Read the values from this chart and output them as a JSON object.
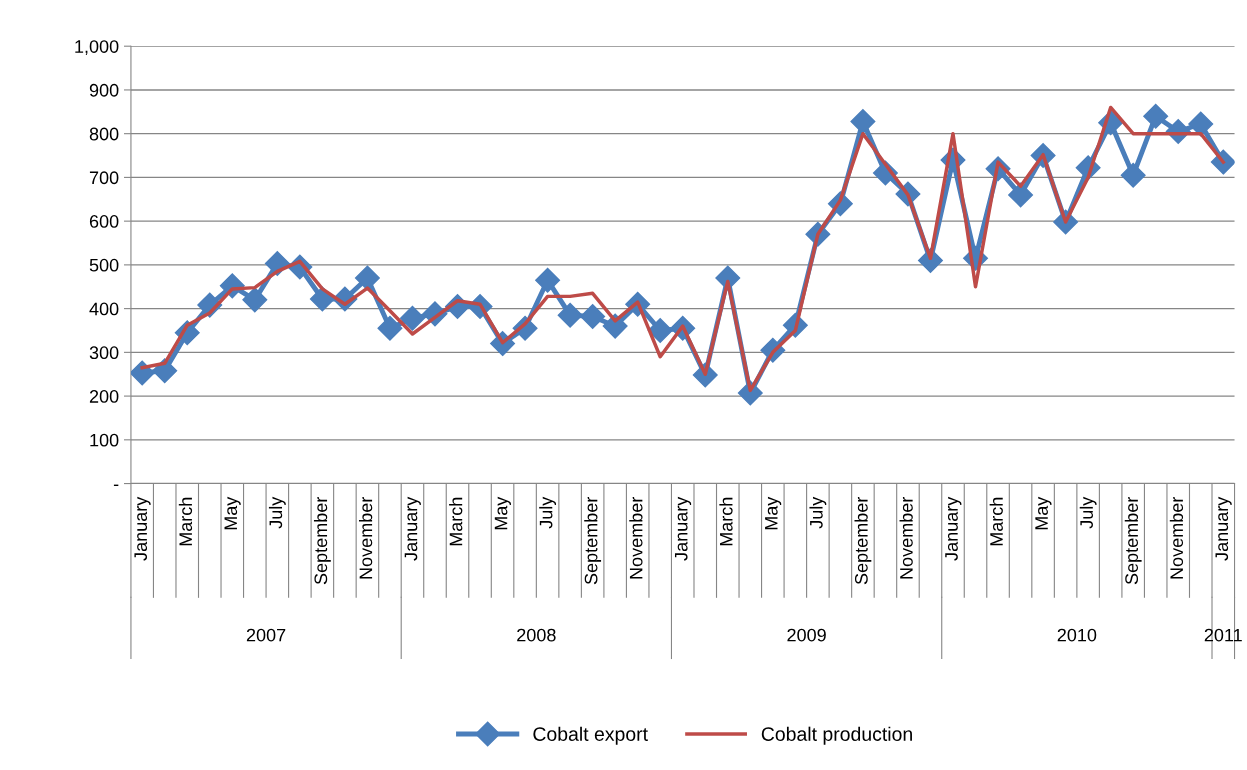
{
  "chart_data": {
    "type": "line",
    "categories": [
      "January",
      null,
      "March",
      null,
      "May",
      null,
      "July",
      null,
      "September",
      null,
      "November",
      null,
      "January",
      null,
      "March",
      null,
      "May",
      null,
      "July",
      null,
      "September",
      null,
      "November",
      null,
      "January",
      null,
      "March",
      null,
      "May",
      null,
      "July",
      null,
      "September",
      null,
      "November",
      null,
      "January",
      null,
      "March",
      null,
      "May",
      null,
      "July",
      null,
      "September",
      null,
      "November",
      null,
      "January"
    ],
    "annotations": [
      "2007",
      "2008",
      "2009",
      "2010",
      "2011"
    ],
    "ylim": [
      0,
      1000
    ],
    "yticks": [
      {
        "value": 0,
        "label": "-"
      },
      100,
      200,
      300,
      400,
      500,
      600,
      700,
      800,
      900,
      {
        "value": 1000,
        "label": "1,000"
      }
    ],
    "grid": "y",
    "legend": "bottom",
    "series": [
      {
        "name": "Cobalt export",
        "color": "#4a7ebb",
        "marker": "diamond",
        "values": [
          253,
          258,
          345,
          408,
          452,
          420,
          503,
          495,
          422,
          422,
          470,
          355,
          378,
          388,
          405,
          405,
          320,
          355,
          465,
          385,
          382,
          360,
          410,
          350,
          355,
          248,
          470,
          207,
          305,
          362,
          570,
          640,
          828,
          710,
          662,
          510,
          740,
          515,
          720,
          660,
          750,
          598,
          722,
          825,
          705,
          840,
          805,
          822,
          735
        ]
      },
      {
        "name": "Cobalt production",
        "color": "#be4b48",
        "marker": "none",
        "values": [
          265,
          275,
          362,
          390,
          445,
          448,
          485,
          508,
          445,
          410,
          447,
          395,
          342,
          380,
          418,
          410,
          322,
          365,
          428,
          428,
          435,
          372,
          415,
          290,
          360,
          250,
          462,
          213,
          300,
          350,
          570,
          648,
          800,
          730,
          660,
          515,
          800,
          450,
          735,
          680,
          752,
          598,
          700,
          860,
          800,
          800,
          800,
          800,
          735
        ]
      }
    ]
  }
}
